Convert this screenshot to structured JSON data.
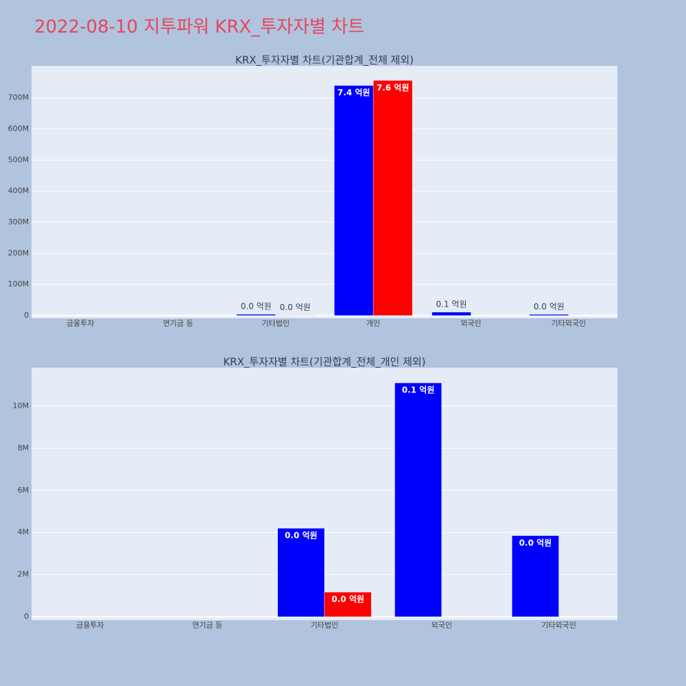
{
  "title": "2022-08-10 지투파워 KRX_투자자별 차트",
  "chart_data": [
    {
      "type": "bar",
      "title": "KRX_투자자별 차트(기관합계_전체 제외)",
      "categories": [
        "금융투자",
        "연기금 등",
        "기타법인",
        "개인",
        "외국인",
        "기타외국인"
      ],
      "series": [
        {
          "color": "#0000ff",
          "values": [
            null,
            null,
            4200000,
            740000000,
            11100000,
            3850000
          ],
          "value_labels": [
            null,
            null,
            "0.0 억원",
            "7.4 억원",
            "0.1 억원",
            "0.0 억원"
          ]
        },
        {
          "color": "#ff0000",
          "values": [
            null,
            null,
            1170000,
            756000000,
            null,
            null
          ],
          "value_labels": [
            null,
            null,
            "0.0 억원",
            "7.6 억원",
            null,
            null
          ]
        }
      ],
      "ylim": [
        -8800000,
        803000000
      ],
      "yticks": [
        0,
        {
          "value": 100000000,
          "label": "100M"
        },
        {
          "value": 200000000,
          "label": "200M"
        },
        {
          "value": 300000000,
          "label": "300M"
        },
        {
          "value": 400000000,
          "label": "400M"
        },
        {
          "value": 500000000,
          "label": "500M"
        },
        {
          "value": 600000000,
          "label": "600M"
        },
        {
          "value": 700000000,
          "label": "700M"
        }
      ],
      "grid": true
    },
    {
      "type": "bar",
      "title": "KRX_투자자별 차트(기관합계_전체_개인 제외)",
      "categories": [
        "금융투자",
        "연기금 등",
        "기타법인",
        "외국인",
        "기타외국인"
      ],
      "series": [
        {
          "color": "#0000ff",
          "values": [
            null,
            null,
            4200000,
            11100000,
            3850000
          ],
          "value_labels": [
            null,
            null,
            "0.0 억원",
            "0.1 억원",
            "0.0 억원"
          ]
        },
        {
          "color": "#ff0000",
          "values": [
            null,
            null,
            1170000,
            null,
            null
          ],
          "value_labels": [
            null,
            null,
            "0.0 억원",
            null,
            null
          ]
        }
      ],
      "ylim": [
        -160000,
        11820000
      ],
      "yticks": [
        0,
        {
          "value": 2000000,
          "label": "2M"
        },
        {
          "value": 4000000,
          "label": "4M"
        },
        {
          "value": 6000000,
          "label": "6M"
        },
        {
          "value": 8000000,
          "label": "8M"
        },
        {
          "value": 10000000,
          "label": "10M"
        }
      ],
      "grid": true
    }
  ]
}
